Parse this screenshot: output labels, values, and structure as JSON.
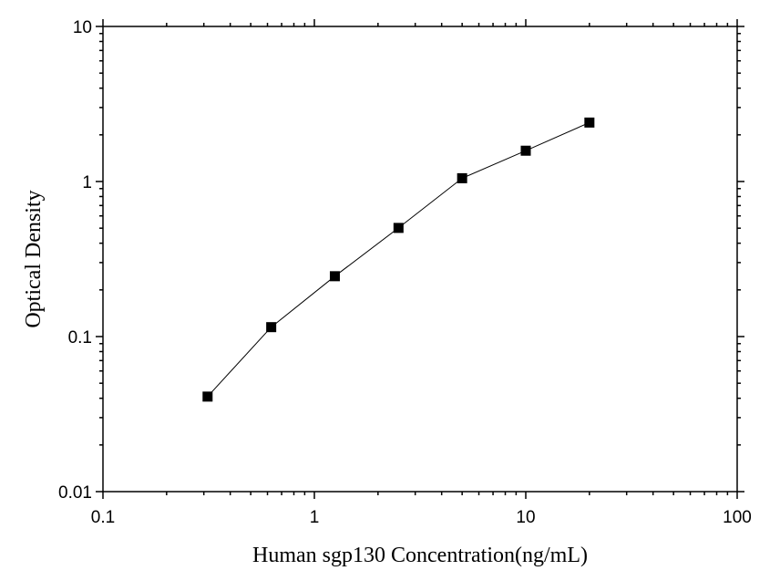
{
  "chart_data": {
    "type": "scatter",
    "title": "",
    "xlabel": "Human sgp130  Concentration(ng/mL)",
    "ylabel": "Optical Density",
    "x_scale": "log",
    "y_scale": "log",
    "xlim": [
      0.1,
      100
    ],
    "ylim": [
      0.01,
      10
    ],
    "x_ticks": [
      {
        "value": 0.1,
        "label": "0.1"
      },
      {
        "value": 1,
        "label": "1"
      },
      {
        "value": 10,
        "label": "10"
      },
      {
        "value": 100,
        "label": "100"
      }
    ],
    "y_ticks": [
      {
        "value": 0.01,
        "label": "0.01"
      },
      {
        "value": 0.1,
        "label": "0.1"
      },
      {
        "value": 1,
        "label": "1"
      },
      {
        "value": 10,
        "label": "10"
      }
    ],
    "grid": false,
    "legend": "none",
    "series": [
      {
        "marker": "square",
        "color": "#000000",
        "connected": true,
        "x": [
          0.3125,
          0.625,
          1.25,
          2.5,
          5,
          10,
          20
        ],
        "y": [
          0.041,
          0.115,
          0.245,
          0.502,
          1.05,
          1.58,
          2.4
        ]
      }
    ]
  }
}
